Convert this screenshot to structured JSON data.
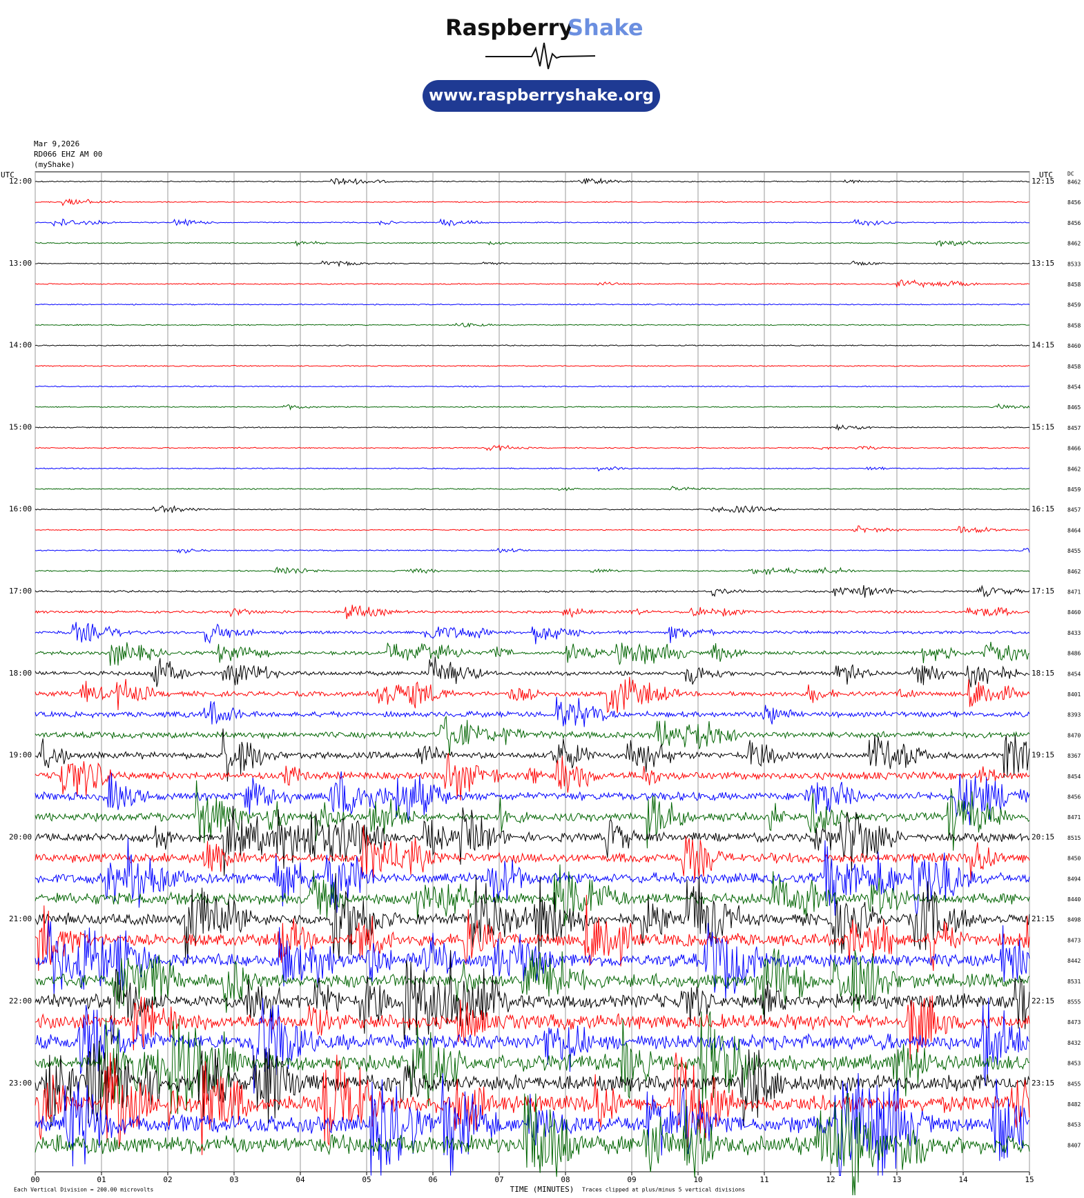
{
  "header": {
    "brand_first": "Raspberry",
    "brand_second": "Shake",
    "url": "www.raspberryshake.org"
  },
  "chart_data": {
    "type": "helicorder",
    "date": "Mar 9,2026",
    "station": "RD066 EHZ AM 00",
    "source": "(myShake)",
    "left_axis_label": "UTC",
    "right_axis_label": "UTC",
    "dc_label": "DC",
    "row_labels_left": [
      "12:00",
      "13:00",
      "14:00",
      "15:00",
      "16:00",
      "17:00",
      "18:00",
      "19:00",
      "20:00",
      "21:00",
      "22:00",
      "23:00"
    ],
    "row_labels_right": [
      "12:15",
      "13:15",
      "14:15",
      "15:15",
      "16:15",
      "17:15",
      "18:15",
      "19:15",
      "20:15",
      "21:15",
      "22:15",
      "23:15"
    ],
    "dc": [
      8462,
      8456,
      8456,
      8462,
      8533,
      8458,
      8459,
      8458,
      8460,
      8458,
      8454,
      8465,
      8457,
      8466,
      8462,
      8459,
      8457,
      8464,
      8455,
      8462,
      8471,
      8460,
      8433,
      8486,
      8454,
      8401,
      8393,
      8470,
      8367,
      8454,
      8456,
      8471,
      8515,
      8450,
      8494,
      8440,
      8498,
      8473,
      8442,
      8531,
      8555,
      8473,
      8432,
      8453,
      8455,
      8482,
      8453,
      8407
    ],
    "trace_colors": [
      "#000000",
      "#ff0000",
      "#0000ff",
      "#006400"
    ],
    "xlim": [
      0,
      15
    ],
    "xticks": [
      {
        "value": 0,
        "label": "00"
      },
      {
        "value": 1,
        "label": "01"
      },
      {
        "value": 2,
        "label": "02"
      },
      {
        "value": 3,
        "label": "03"
      },
      {
        "value": 4,
        "label": "04"
      },
      {
        "value": 5,
        "label": "05"
      },
      {
        "value": 6,
        "label": "06"
      },
      {
        "value": 7,
        "label": "07"
      },
      {
        "value": 8,
        "label": "08"
      },
      {
        "value": 9,
        "label": "09"
      },
      {
        "value": 10,
        "label": "10"
      },
      {
        "value": 11,
        "label": "11"
      },
      {
        "value": 12,
        "label": "12"
      },
      {
        "value": 13,
        "label": "13"
      },
      {
        "value": 14,
        "label": "14"
      },
      {
        "value": 15,
        "label": "15"
      }
    ],
    "xlabel": "TIME (MINUTES)",
    "scale_note": "Each Vertical Division =  200.00 microvolts",
    "clip_note": "Traces clipped at plus/minus 5 vertical divisions",
    "grid": true
  }
}
